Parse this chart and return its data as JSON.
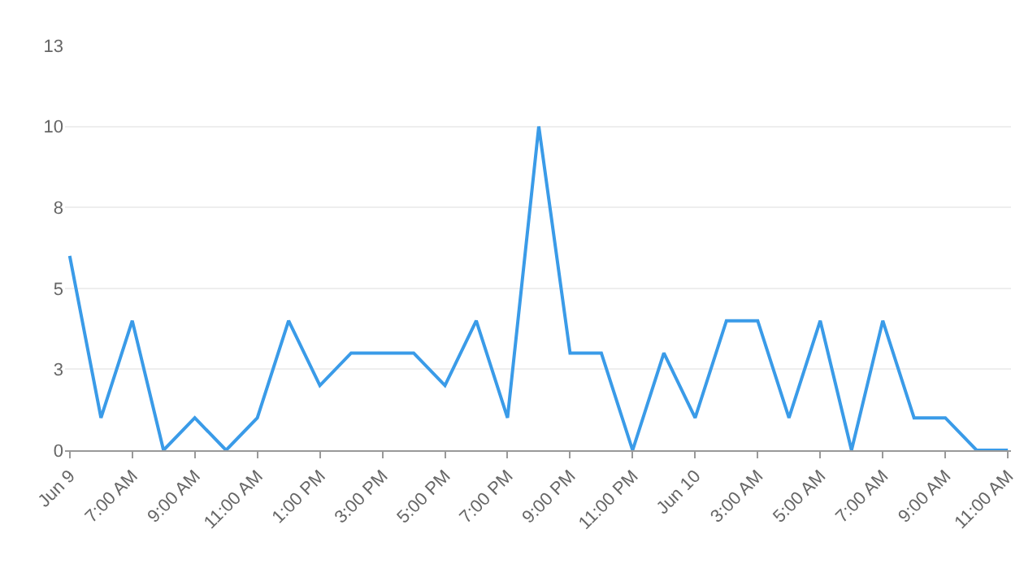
{
  "chart_data": {
    "type": "line",
    "categories": [
      "Jun 9",
      null,
      "7:00 AM",
      null,
      "9:00 AM",
      null,
      "11:00 AM",
      null,
      "1:00 PM",
      null,
      "3:00 PM",
      null,
      "5:00 PM",
      null,
      "7:00 PM",
      null,
      "9:00 PM",
      null,
      "11:00 PM",
      null,
      "Jun 10",
      null,
      "3:00 AM",
      null,
      "5:00 AM",
      null,
      "7:00 AM",
      null,
      "9:00 AM",
      null,
      "11:00 AM"
    ],
    "series": [
      {
        "color": "#3a9be8",
        "values": [
          6,
          1,
          4,
          0,
          1,
          0,
          1,
          4,
          2,
          3,
          3,
          3,
          2,
          4,
          1,
          10,
          3,
          3,
          0,
          3,
          1,
          4,
          4,
          1,
          4,
          0,
          4,
          1,
          1,
          0,
          0
        ]
      }
    ],
    "ylim": [
      0,
      12.5
    ],
    "yticks": [
      0,
      {
        "value": 2.5,
        "label": "3"
      },
      5,
      {
        "value": 7.5,
        "label": "8"
      },
      10,
      {
        "value": 12.5,
        "label": "13"
      }
    ],
    "grid": "y",
    "legend": false,
    "marker": "none",
    "line_style": "solid"
  }
}
